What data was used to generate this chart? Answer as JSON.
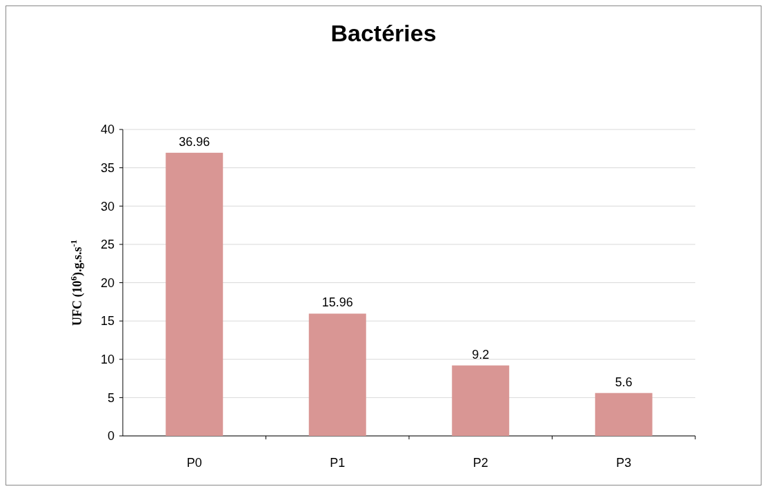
{
  "chart_data": {
    "type": "bar",
    "title": "Bactéries",
    "ylabel": "UFC (10$^{6}$).g.s.s$^{-1}$",
    "categories": [
      "P0",
      "P1",
      "P2",
      "P3"
    ],
    "values": [
      36.96,
      15.96,
      9.2,
      5.6
    ],
    "color": "#d99694",
    "ylim": [
      0,
      40
    ],
    "yticks": [
      0,
      5,
      10,
      15,
      20,
      25,
      30,
      35,
      40
    ],
    "grid": "y",
    "data_labels": true
  }
}
